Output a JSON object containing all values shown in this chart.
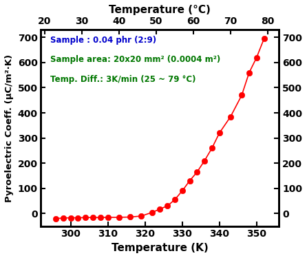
{
  "x_K": [
    296,
    298,
    300,
    302,
    304,
    306,
    308,
    310,
    313,
    316,
    319,
    322,
    324,
    326,
    328,
    330,
    332,
    334,
    336,
    338,
    340,
    343,
    346,
    348,
    350,
    352
  ],
  "y_values": [
    -20,
    -18,
    -17,
    -17,
    -16,
    -16,
    -16,
    -15,
    -15,
    -14,
    -10,
    5,
    18,
    30,
    55,
    90,
    130,
    165,
    210,
    260,
    320,
    385,
    470,
    560,
    620,
    695
  ],
  "line_color": "#FF0000",
  "marker_color": "#FF0000",
  "marker_facecolor": "#FF0000",
  "marker_style": "o",
  "marker_size": 6,
  "line_width": 1.2,
  "xlabel_bottom": "Temperature (K)",
  "xlabel_top": "Temperature (°C)",
  "ylabel_left": "Pyroelectric Coeff. (μC/m²·K)",
  "xlim_K": [
    292,
    356
  ],
  "xlim_C": [
    19,
    83
  ],
  "ylim": [
    -50,
    730
  ],
  "yticks": [
    0,
    100,
    200,
    300,
    400,
    500,
    600,
    700
  ],
  "xticks_K": [
    300,
    310,
    320,
    330,
    340,
    350
  ],
  "xticks_C": [
    20,
    30,
    40,
    50,
    60,
    70,
    80
  ],
  "ann1_text": "Sample : 0.04 phr (2:9)",
  "ann1_color": "#0000CC",
  "ann2_text": "Sample area: 20x20 mm² (0.0004 m²)",
  "ann2_color": "#007700",
  "ann3_text": "Temp. Diff.: 3K/min (25 ~ 79 °C)",
  "ann3_color": "#007700",
  "background_color": "#FFFFFF",
  "face_color": "#FFFFFF",
  "border_color": "#000000",
  "tick_fontsize": 10,
  "label_fontsize": 11,
  "ann_fontsize": 8.5
}
